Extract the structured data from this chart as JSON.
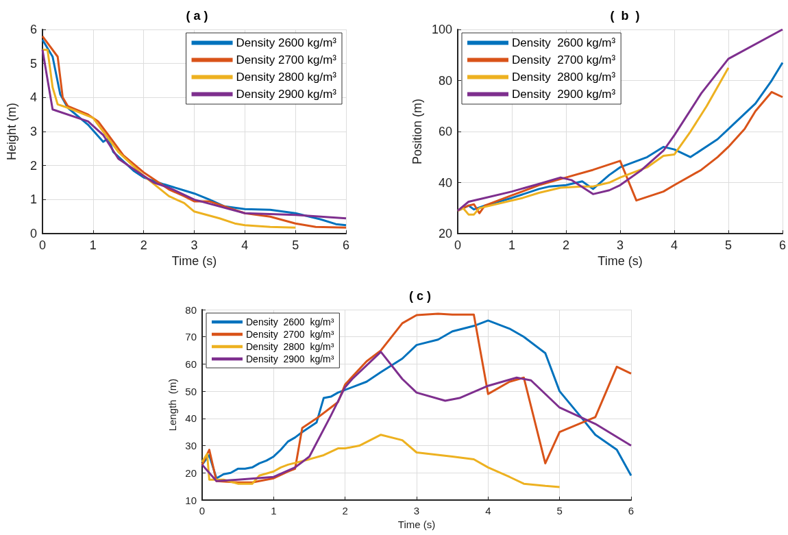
{
  "chart_data": [
    {
      "type": "line",
      "title": "( a )",
      "xlabel": "Time (s)",
      "ylabel": "Height (m)",
      "xlim": [
        0,
        6
      ],
      "xticks": [
        0,
        1,
        2,
        3,
        4,
        5,
        6
      ],
      "ylim": [
        0,
        6
      ],
      "yticks": [
        0,
        1,
        2,
        3,
        4,
        5,
        6
      ],
      "grid": true,
      "legend": "top right",
      "marker": "none",
      "line_style": "solid",
      "series": [
        {
          "name": "Density 2600 kg/m³",
          "color": "#0072bd",
          "x": [
            0,
            0.2,
            0.35,
            0.5,
            0.9,
            1.2,
            1.3,
            1.4,
            1.8,
            2,
            2.4,
            2.8,
            3,
            3.3,
            3.6,
            4,
            4.5,
            5,
            5.5,
            5.8,
            6
          ],
          "values": [
            5.7,
            5.2,
            4.1,
            3.7,
            3.2,
            2.7,
            2.8,
            2.4,
            1.85,
            1.65,
            1.45,
            1.27,
            1.18,
            1.0,
            0.8,
            0.72,
            0.7,
            0.6,
            0.42,
            0.28,
            0.25
          ]
        },
        {
          "name": "Density 2700 kg/m³",
          "color": "#d95319",
          "x": [
            0,
            0.3,
            0.4,
            0.5,
            0.9,
            1.1,
            1.3,
            1.6,
            2,
            2.5,
            2.8,
            3,
            3.3,
            3.6,
            4,
            4.5,
            5,
            5.4,
            6
          ],
          "values": [
            5.8,
            5.2,
            4.0,
            3.75,
            3.5,
            3.3,
            2.9,
            2.3,
            1.8,
            1.3,
            1.1,
            0.95,
            0.95,
            0.8,
            0.6,
            0.5,
            0.3,
            0.2,
            0.18
          ]
        },
        {
          "name": "Density 2800 kg/m³",
          "color": "#edb120",
          "x": [
            0,
            0.1,
            0.2,
            0.3,
            0.5,
            1,
            1.2,
            1.5,
            2,
            2.5,
            2.8,
            3,
            3.5,
            3.8,
            4,
            4.5,
            5
          ],
          "values": [
            5.4,
            5.4,
            4.3,
            3.8,
            3.7,
            3.4,
            3.0,
            2.4,
            1.7,
            1.1,
            0.9,
            0.65,
            0.45,
            0.3,
            0.25,
            0.2,
            0.18
          ]
        },
        {
          "name": "Density 2900 kg/m³",
          "color": "#7e2f8e",
          "x": [
            0,
            0.2,
            0.9,
            1.2,
            1.5,
            2,
            2.2,
            2.5,
            3,
            4,
            5,
            6
          ],
          "values": [
            5.4,
            3.65,
            3.3,
            2.9,
            2.2,
            1.7,
            1.5,
            1.35,
            1.0,
            0.6,
            0.55,
            0.45
          ]
        }
      ]
    },
    {
      "type": "line",
      "title": "(  b  )",
      "xlabel": "Time (s)",
      "ylabel": "Position (m)",
      "xlim": [
        0,
        6
      ],
      "xticks": [
        0,
        1,
        2,
        3,
        4,
        5,
        6
      ],
      "ylim": [
        20,
        100
      ],
      "yticks": [
        20,
        40,
        60,
        80,
        100
      ],
      "grid": true,
      "legend": "top left",
      "marker": "none",
      "line_style": "solid",
      "series": [
        {
          "name": "Density  2600 kg/m³",
          "color": "#0072bd",
          "x": [
            0,
            0.2,
            0.3,
            0.5,
            1,
            1.5,
            1.7,
            2,
            2.3,
            2.5,
            2.8,
            3,
            3.5,
            3.8,
            4,
            4.3,
            4.8,
            5,
            5.5,
            5.8,
            6
          ],
          "values": [
            29,
            31,
            29.5,
            31,
            34,
            37.5,
            38.5,
            39,
            40.5,
            37.5,
            43,
            46,
            50,
            54,
            53,
            50,
            57,
            61,
            71,
            80,
            87
          ]
        },
        {
          "name": "Density  2700 kg/m³",
          "color": "#d95319",
          "x": [
            0,
            0.2,
            0.3,
            0.4,
            0.5,
            1,
            1.5,
            2,
            2.5,
            3,
            3.3,
            3.8,
            4,
            4.5,
            4.8,
            5,
            5.3,
            5.5,
            5.8,
            6
          ],
          "values": [
            29,
            31,
            31.5,
            28,
            31,
            35,
            39,
            42,
            45,
            48.5,
            33,
            36.5,
            39,
            45,
            50,
            54,
            61,
            68,
            75.5,
            73.5
          ]
        },
        {
          "name": "Density  2800 kg/m³",
          "color": "#edb120",
          "x": [
            0,
            0.1,
            0.2,
            0.3,
            0.4,
            0.9,
            1.2,
            1.5,
            1.7,
            1.9,
            2.3,
            2.5,
            2.8,
            3,
            3.5,
            3.8,
            4,
            4.3,
            4.6,
            5
          ],
          "values": [
            29,
            30,
            27.5,
            27.5,
            30,
            32.5,
            34,
            36,
            37,
            38,
            38.5,
            38.5,
            40,
            42,
            46,
            50.5,
            51,
            60,
            70,
            85
          ]
        },
        {
          "name": "Density  2900 kg/m³",
          "color": "#7e2f8e",
          "x": [
            0,
            0.2,
            0.5,
            1,
            1.5,
            1.9,
            2.1,
            2.5,
            2.8,
            3,
            3.4,
            3.8,
            4,
            4.5,
            5,
            6
          ],
          "values": [
            29,
            32.5,
            34,
            36.5,
            39.5,
            42,
            41,
            35.5,
            37,
            39,
            45,
            52.5,
            58.5,
            75,
            88.5,
            100
          ]
        }
      ]
    },
    {
      "type": "line",
      "title": "( c )",
      "xlabel": "Time (s)",
      "ylabel": "Length  (m)",
      "xlim": [
        0,
        6
      ],
      "xticks": [
        0,
        1,
        2,
        3,
        4,
        5,
        6
      ],
      "ylim": [
        10,
        80
      ],
      "yticks": [
        10,
        20,
        30,
        40,
        50,
        60,
        70,
        80
      ],
      "grid": true,
      "legend": "top left",
      "marker": "none",
      "line_style": "solid",
      "series": [
        {
          "name": "Density  2600  kg/m³",
          "color": "#0072bd",
          "x": [
            0,
            0.1,
            0.2,
            0.3,
            0.4,
            0.5,
            0.6,
            0.7,
            0.8,
            0.9,
            1,
            1.1,
            1.2,
            1.3,
            1.4,
            1.6,
            1.7,
            1.8,
            1.9,
            2,
            2.3,
            2.5,
            2.8,
            3,
            3.3,
            3.5,
            3.8,
            4,
            4.3,
            4.5,
            4.8,
            5,
            5.3,
            5.5,
            5.8,
            6
          ],
          "values": [
            23,
            26.5,
            18,
            19.5,
            20,
            21.5,
            21.5,
            22,
            23.5,
            24.5,
            26,
            28.5,
            31.5,
            33,
            35,
            38.5,
            47.5,
            48,
            49.5,
            50.5,
            53.5,
            57,
            62,
            67,
            69,
            72,
            74,
            76,
            73,
            70,
            64,
            50,
            40.5,
            34,
            28.5,
            19
          ]
        },
        {
          "name": "Density  2700  kg/m³",
          "color": "#d95319",
          "x": [
            0,
            0.1,
            0.2,
            0.5,
            0.7,
            1,
            1.2,
            1.3,
            1.4,
            1.6,
            1.8,
            1.9,
            2,
            2.3,
            2.5,
            2.8,
            3,
            3.3,
            3.5,
            3.8,
            4,
            4.3,
            4.5,
            4.8,
            5,
            5.5,
            5.8,
            6
          ],
          "values": [
            23,
            28.5,
            17,
            16.5,
            16.5,
            18,
            20.5,
            21.5,
            36.5,
            40,
            44,
            46,
            52.5,
            61,
            65,
            75,
            78,
            78.5,
            78.2,
            78.2,
            49,
            53.5,
            55,
            23.5,
            35,
            40.5,
            59,
            56.5
          ]
        },
        {
          "name": "Density  2800  kg/m³",
          "color": "#edb120",
          "x": [
            0,
            0.07,
            0.1,
            0.3,
            0.5,
            0.7,
            0.8,
            1,
            1.1,
            1.2,
            1.5,
            1.7,
            1.9,
            2,
            2.2,
            2.5,
            2.8,
            3,
            3.5,
            3.8,
            4,
            4.3,
            4.5,
            4.8,
            5
          ],
          "values": [
            24,
            27,
            17.5,
            17.5,
            16,
            16,
            19,
            20.5,
            22,
            23,
            25,
            26.5,
            29,
            29,
            30,
            34,
            32,
            27.5,
            26,
            25,
            22,
            18.5,
            16,
            15.2,
            14.8
          ]
        },
        {
          "name": "Density  2900  kg/m³",
          "color": "#7e2f8e",
          "x": [
            0,
            0.2,
            0.5,
            1,
            1.3,
            1.5,
            1.8,
            2,
            2.1,
            2.5,
            2.8,
            3,
            3.4,
            3.6,
            4,
            4.4,
            4.6,
            5,
            5.5,
            6
          ],
          "values": [
            23,
            17,
            17.5,
            18.5,
            22,
            26,
            41,
            51.5,
            54.5,
            64.5,
            54.5,
            49.5,
            46.5,
            47.5,
            52,
            55,
            54,
            44,
            38,
            30
          ]
        }
      ]
    }
  ]
}
